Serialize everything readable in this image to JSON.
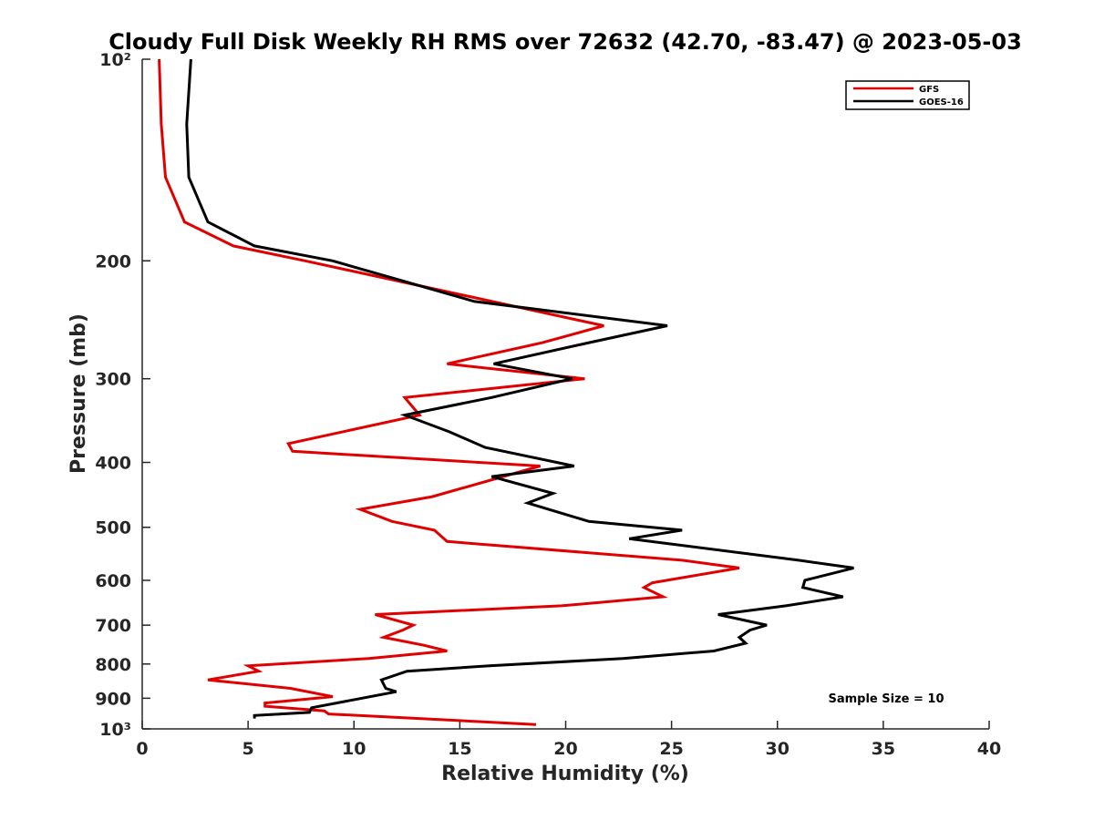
{
  "chart_data": {
    "type": "line",
    "title": "Cloudy Full Disk Weekly RH RMS over 72632 (42.70, -83.47) @ 2023-05-03",
    "xlabel": "Relative Humidity (%)",
    "ylabel": "Pressure (mb)",
    "xlim": [
      0,
      40
    ],
    "ylim": [
      100,
      1000
    ],
    "y_scale": "log",
    "y_reversed": true,
    "x_ticks": [
      0,
      5,
      10,
      15,
      20,
      25,
      30,
      35,
      40
    ],
    "x_tick_labels": [
      "0",
      "5",
      "10",
      "15",
      "20",
      "25",
      "30",
      "35",
      "40"
    ],
    "y_ticks": [
      100,
      200,
      300,
      400,
      500,
      600,
      700,
      800,
      900,
      1000
    ],
    "y_tick_labels": [
      "10²",
      "200",
      "300",
      "400",
      "500",
      "600",
      "700",
      "800",
      "900",
      "10³"
    ],
    "grid": false,
    "legend_position": "top-right",
    "annotation": "Sample Size = 10",
    "series": [
      {
        "name": "GFS",
        "color": "#e00000",
        "points": [
          [
            0.8,
            100
          ],
          [
            0.9,
            125
          ],
          [
            1.1,
            150
          ],
          [
            2.0,
            175
          ],
          [
            4.3,
            190
          ],
          [
            7.7,
            200
          ],
          [
            21.8,
            250
          ],
          [
            18.9,
            265
          ],
          [
            14.4,
            285
          ],
          [
            20.9,
            300
          ],
          [
            12.4,
            320
          ],
          [
            13.1,
            340
          ],
          [
            6.9,
            375
          ],
          [
            7.1,
            385
          ],
          [
            18.8,
            405
          ],
          [
            13.7,
            450
          ],
          [
            10.3,
            470
          ],
          [
            11.8,
            490
          ],
          [
            13.8,
            505
          ],
          [
            14.4,
            525
          ],
          [
            25.5,
            560
          ],
          [
            28.2,
            575
          ],
          [
            24.1,
            605
          ],
          [
            23.7,
            615
          ],
          [
            24.6,
            635
          ],
          [
            19.8,
            655
          ],
          [
            11.0,
            675
          ],
          [
            12.8,
            700
          ],
          [
            12.3,
            712
          ],
          [
            11.4,
            730
          ],
          [
            13.3,
            750
          ],
          [
            14.4,
            765
          ],
          [
            10.7,
            785
          ],
          [
            5.0,
            805
          ],
          [
            5.5,
            820
          ],
          [
            3.1,
            845
          ],
          [
            7.0,
            870
          ],
          [
            9.0,
            895
          ],
          [
            5.8,
            915
          ],
          [
            5.8,
            925
          ],
          [
            8.6,
            940
          ],
          [
            8.8,
            950
          ],
          [
            18.6,
            985
          ]
        ]
      },
      {
        "name": "GOES-16",
        "color": "#000000",
        "points": [
          [
            2.3,
            100
          ],
          [
            2.1,
            125
          ],
          [
            2.2,
            150
          ],
          [
            3.1,
            175
          ],
          [
            5.3,
            190
          ],
          [
            9.0,
            200
          ],
          [
            15.7,
            230
          ],
          [
            24.8,
            250
          ],
          [
            21.1,
            265
          ],
          [
            16.6,
            285
          ],
          [
            20.3,
            300
          ],
          [
            16.5,
            320
          ],
          [
            12.4,
            340
          ],
          [
            14.5,
            360
          ],
          [
            16.2,
            380
          ],
          [
            20.4,
            405
          ],
          [
            16.5,
            420
          ],
          [
            19.4,
            445
          ],
          [
            18.2,
            460
          ],
          [
            21.1,
            490
          ],
          [
            25.5,
            505
          ],
          [
            23.0,
            520
          ],
          [
            31.0,
            560
          ],
          [
            33.6,
            575
          ],
          [
            31.3,
            600
          ],
          [
            31.2,
            615
          ],
          [
            33.1,
            635
          ],
          [
            30.4,
            655
          ],
          [
            27.2,
            675
          ],
          [
            29.5,
            700
          ],
          [
            28.7,
            712
          ],
          [
            28.2,
            730
          ],
          [
            28.5,
            745
          ],
          [
            27.0,
            765
          ],
          [
            22.7,
            785
          ],
          [
            16.4,
            805
          ],
          [
            12.5,
            820
          ],
          [
            11.3,
            845
          ],
          [
            11.5,
            870
          ],
          [
            12.0,
            880
          ],
          [
            8.0,
            930
          ],
          [
            7.9,
            945
          ],
          [
            5.3,
            955
          ],
          [
            5.3,
            965
          ]
        ]
      }
    ]
  }
}
